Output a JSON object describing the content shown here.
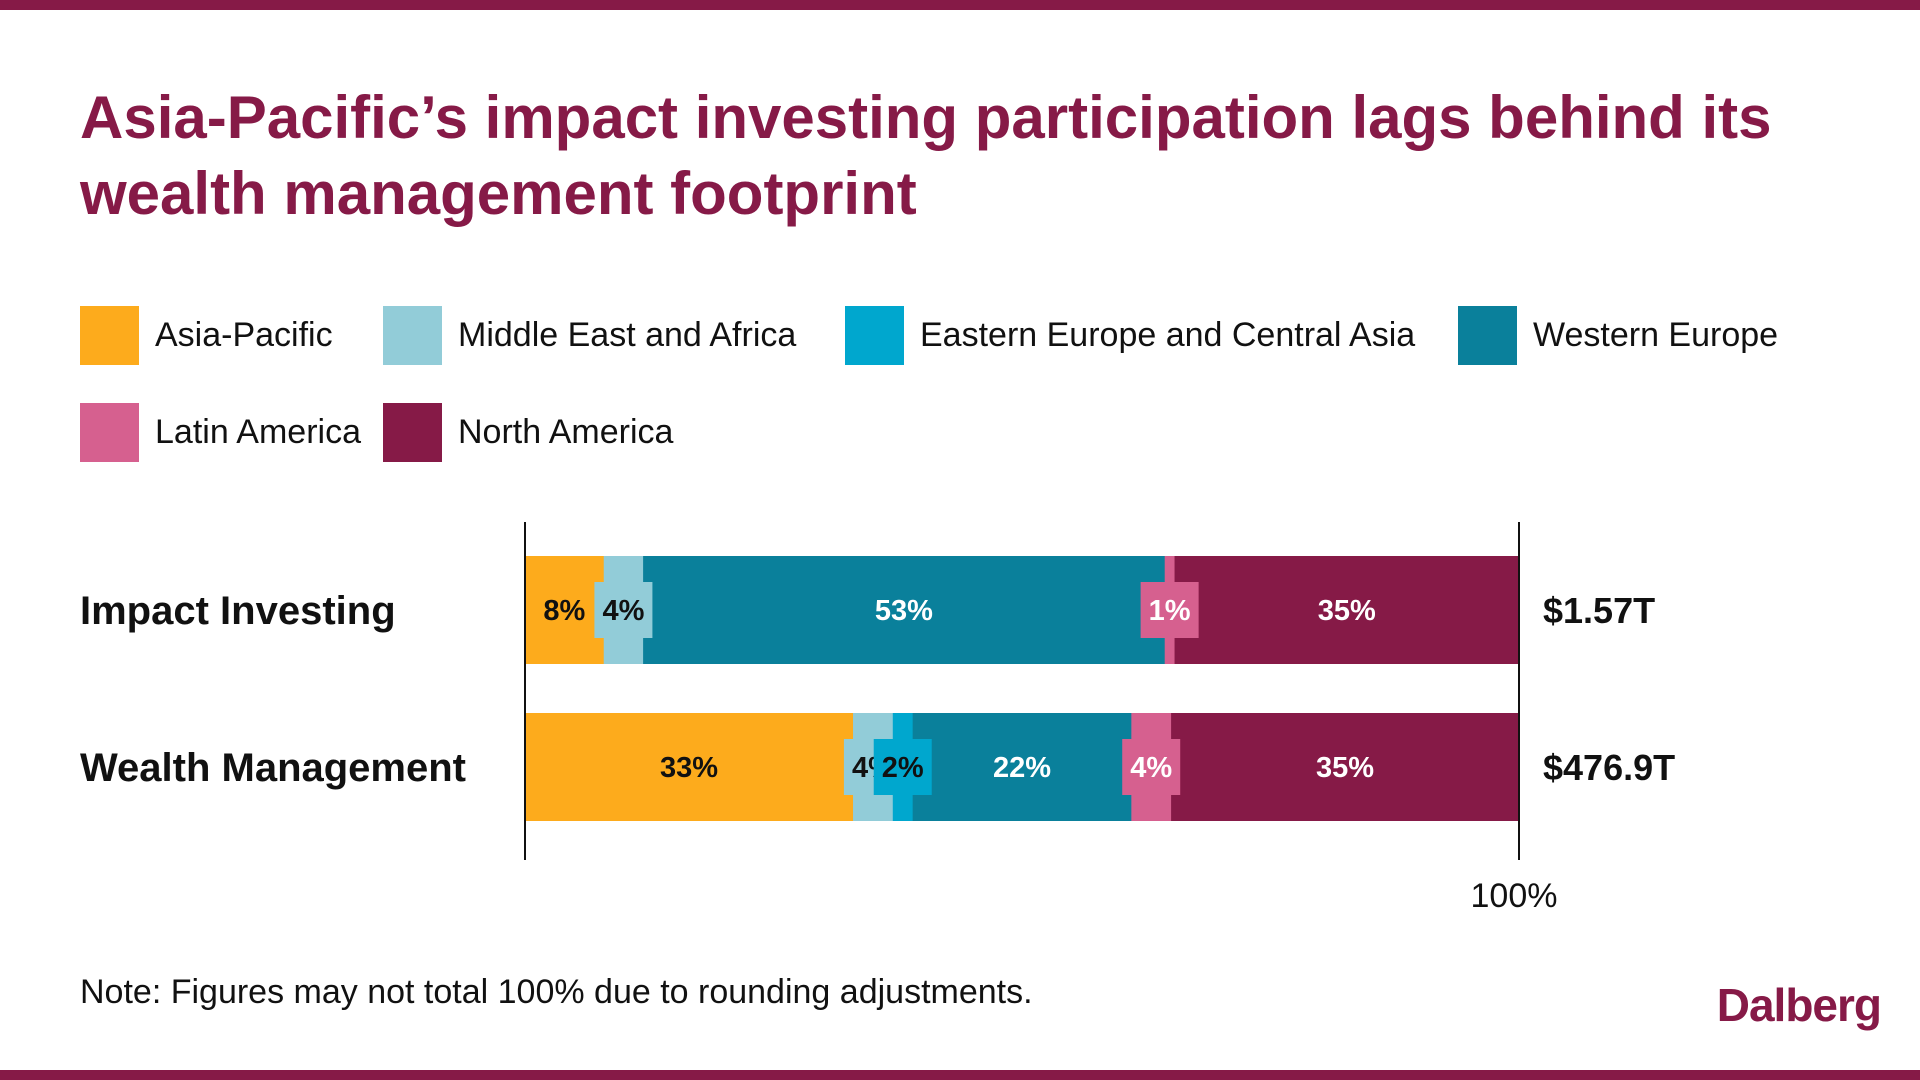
{
  "title": "Asia-Pacific’s impact investing participation lags behind its wealth management footprint",
  "colors": {
    "brand": "#861a47",
    "asia_pacific": "#fdab1c",
    "middle_east_africa": "#92ccd8",
    "eastern_europe_central_asia": "#00a7ce",
    "western_europe": "#0a809b",
    "latin_america": "#d6608f",
    "north_america": "#861a47"
  },
  "legend": [
    {
      "label": "Asia-Pacific",
      "color": "#fdab1c"
    },
    {
      "label": "Middle East and Africa",
      "color": "#92ccd8"
    },
    {
      "label": "Eastern Europe and Central Asia",
      "color": "#00a7ce"
    },
    {
      "label": "Western Europe",
      "color": "#0a809b"
    },
    {
      "label": "Latin America",
      "color": "#d6608f"
    },
    {
      "label": "North America",
      "color": "#861a47"
    }
  ],
  "chart_data": {
    "type": "bar",
    "orientation": "horizontal",
    "stacked": true,
    "normalized": true,
    "categories": [
      "Impact Investing",
      "Wealth Management"
    ],
    "totals": [
      "$1.57T",
      "$476.9T"
    ],
    "series": [
      {
        "name": "Asia-Pacific",
        "values": [
          8,
          33
        ],
        "labels": [
          "8%",
          "33%"
        ]
      },
      {
        "name": "Middle East and Africa",
        "values": [
          4,
          4
        ],
        "labels": [
          "4%",
          "4%"
        ]
      },
      {
        "name": "Eastern Europe and Central Asia",
        "values": [
          0,
          2
        ],
        "labels": [
          "",
          "2%"
        ]
      },
      {
        "name": "Western Europe",
        "values": [
          53,
          22
        ],
        "labels": [
          "53%",
          "22%"
        ]
      },
      {
        "name": "Latin America",
        "values": [
          1,
          4
        ],
        "labels": [
          "1%",
          "4%"
        ]
      },
      {
        "name": "North America",
        "values": [
          35,
          35
        ],
        "labels": [
          "35%",
          "35%"
        ]
      }
    ],
    "xlim": [
      0,
      100
    ],
    "x_tick_label": "100%",
    "title": "Asia-Pacific’s impact investing participation lags behind its wealth management footprint"
  },
  "note": "Note: Figures may not total 100% due to rounding adjustments.",
  "logo": "Dalberg"
}
